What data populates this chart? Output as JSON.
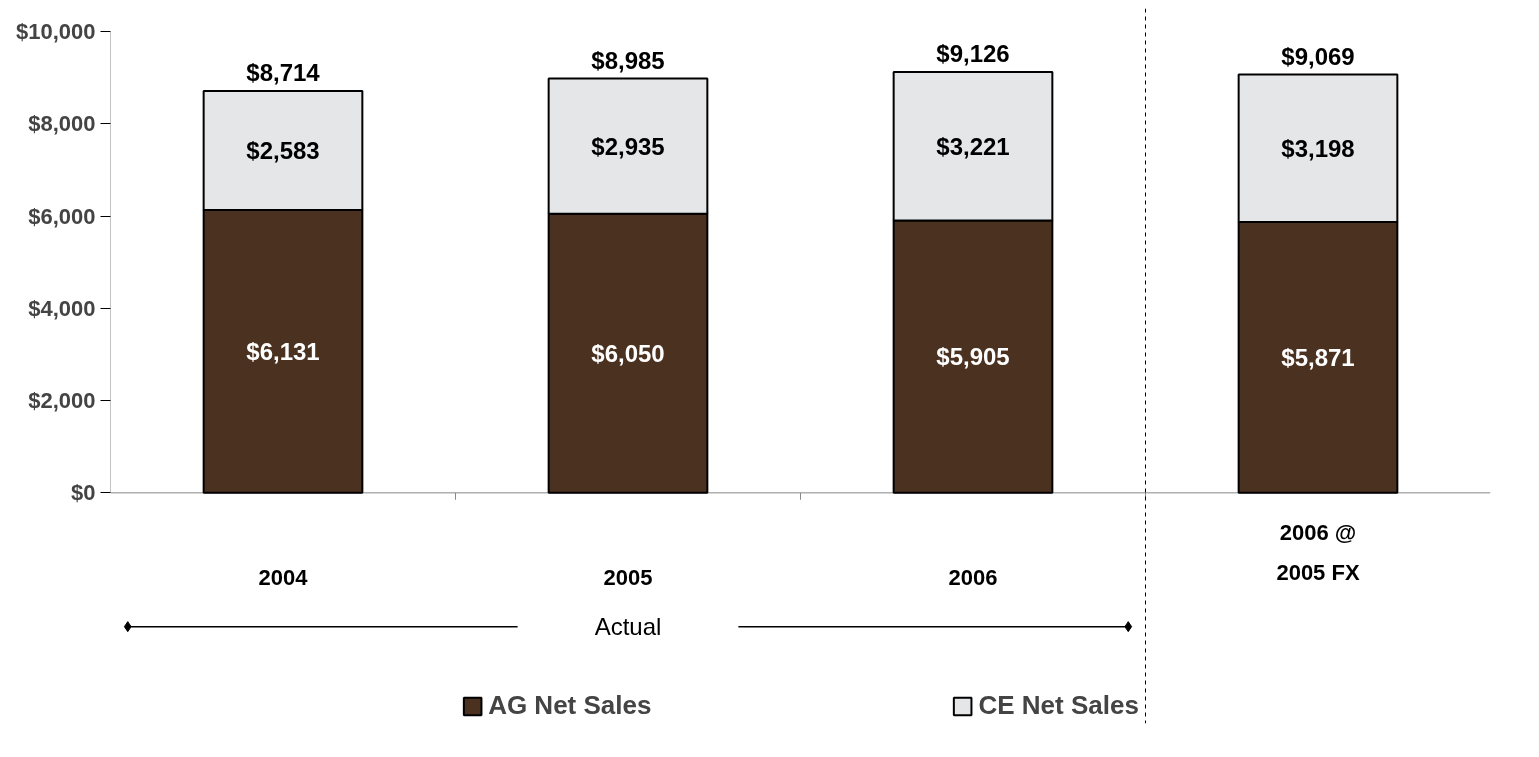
{
  "chart_data": {
    "type": "bar",
    "stacked": true,
    "categories": [
      "2004",
      "2005",
      "2006",
      "2006 @\n2005 FX"
    ],
    "series": [
      {
        "name": "AG Net Sales",
        "color": "#4b3120",
        "values": [
          6131,
          6050,
          5905,
          5871
        ],
        "value_labels": [
          "$6,131",
          "$6,050",
          "$5,905",
          "$5,871"
        ]
      },
      {
        "name": "CE Net Sales",
        "color": "#e4e6e8",
        "values": [
          2583,
          2935,
          3221,
          3198
        ],
        "value_labels": [
          "$2,583",
          "$2,935",
          "$3,221",
          "$3,198"
        ]
      }
    ],
    "totals": [
      "$8,714",
      "$8,985",
      "$9,126",
      "$9,069"
    ],
    "ylim": [
      0,
      10000
    ],
    "yticks": [
      {
        "value": 0,
        "label": "$0"
      },
      {
        "value": 2000,
        "label": "$2,000"
      },
      {
        "value": 4000,
        "label": "$4,000"
      },
      {
        "value": 6000,
        "label": "$6,000"
      },
      {
        "value": 8000,
        "label": "$8,000"
      },
      {
        "value": 10000,
        "label": "$10,000"
      }
    ],
    "annotations": [
      "Actual"
    ],
    "grid": false,
    "legend": "bottom"
  }
}
